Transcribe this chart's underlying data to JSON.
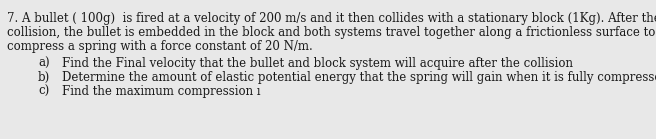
{
  "line1": "7. A bullet ( 100g)  is fired at a velocity of 200 m/s and it then collides with a stationary block (1Kg). After the",
  "line2": "collision, the bullet is embedded in the block and both systems travel together along a frictionless surface to fully",
  "line3": "compress a spring with a force constant of 20 N/m.",
  "item_a": "Find the Final velocity that the bullet and block system will acquire after the collision",
  "item_b": "Determine the amount of elastic potential energy that the spring will gain when it is fully compressed",
  "item_c": "Find the maximum compression ı",
  "label_a": "a)",
  "label_b": "b)",
  "label_c": "c)",
  "font_size": 8.5,
  "text_color": "#1a1a1a",
  "background_color": "#e8e8e8"
}
